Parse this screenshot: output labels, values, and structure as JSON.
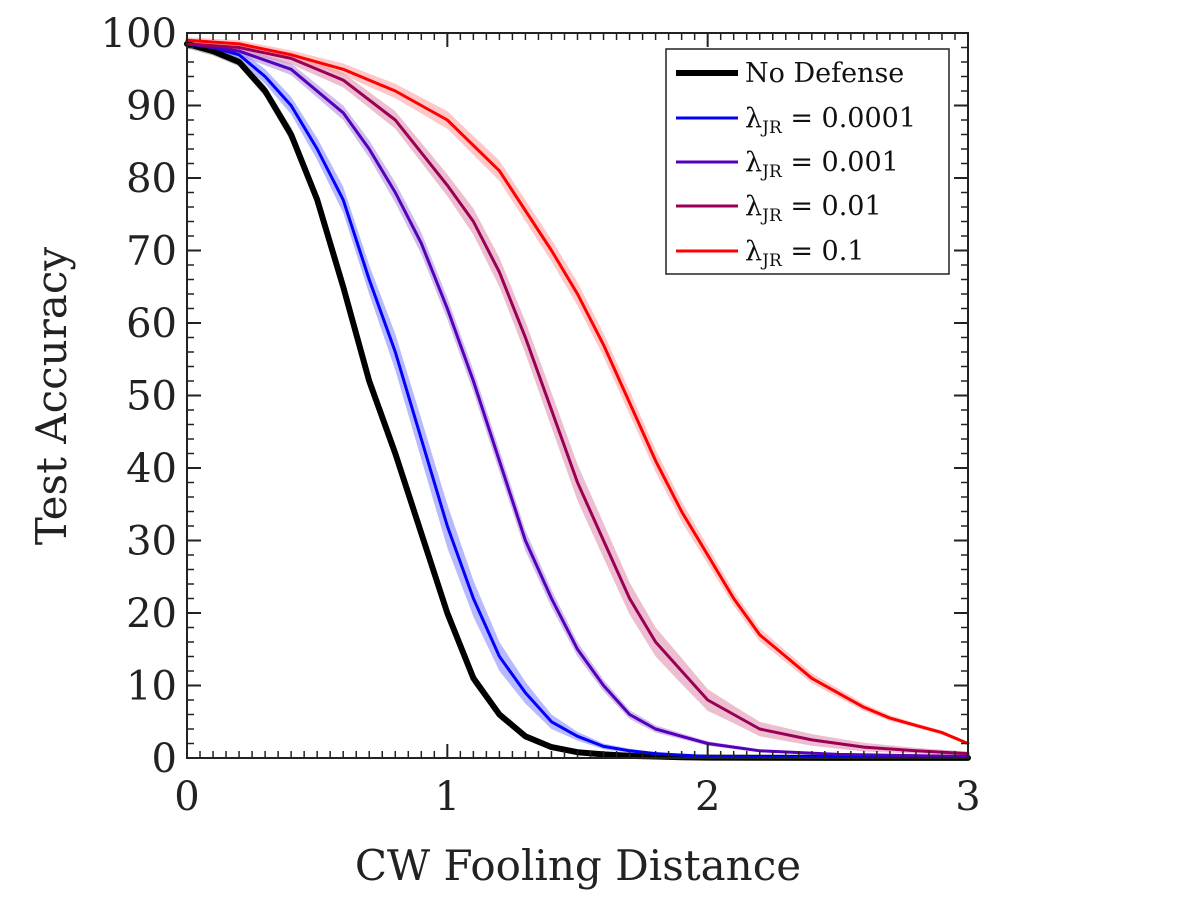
{
  "chart_data": {
    "type": "line",
    "title": "",
    "xlabel": "CW Fooling Distance",
    "ylabel": "Test Accuracy",
    "xlim": [
      0,
      3
    ],
    "ylim": [
      0,
      100
    ],
    "xticks": [
      0,
      1,
      2,
      3
    ],
    "xtick_labels": [
      "0",
      "1",
      "2",
      "3"
    ],
    "yticks": [
      0,
      10,
      20,
      30,
      40,
      50,
      60,
      70,
      80,
      90,
      100
    ],
    "ytick_labels": [
      "0",
      "10",
      "20",
      "30",
      "40",
      "50",
      "60",
      "70",
      "80",
      "90",
      "100"
    ],
    "grid": false,
    "legend_position": "top-right",
    "series": [
      {
        "name": "No Defense",
        "label_main": "No Defense",
        "label_sub": "",
        "label_value": "",
        "color": "#000000",
        "band_color": "#7f7f7f",
        "thick": true,
        "x": [
          0,
          0.1,
          0.2,
          0.3,
          0.4,
          0.5,
          0.6,
          0.7,
          0.8,
          0.9,
          1.0,
          1.1,
          1.2,
          1.3,
          1.4,
          1.5,
          1.6,
          1.7,
          1.8,
          1.9,
          2.0,
          2.5,
          3.0
        ],
        "y": [
          98.5,
          97.5,
          96,
          92,
          86,
          77,
          65,
          52,
          42,
          31,
          20,
          11,
          6,
          3,
          1.5,
          0.8,
          0.5,
          0.3,
          0.2,
          0.1,
          0.05,
          0.02,
          0.01
        ],
        "band": [
          0.6,
          0.6,
          0.6,
          0.8,
          1,
          1,
          1.2,
          1.2,
          1.2,
          1,
          1,
          0.8,
          0.6,
          0.4,
          0.3,
          0.2,
          0.2,
          0.1,
          0.1,
          0.1,
          0.05,
          0.02,
          0.01
        ]
      },
      {
        "name": "λJR = 0.0001",
        "label_main": "λ",
        "label_sub": "JR",
        "label_value": " = 0.0001",
        "color": "#0000ff",
        "band_color": "#8080ff",
        "thick": false,
        "x": [
          0,
          0.1,
          0.2,
          0.3,
          0.4,
          0.5,
          0.6,
          0.7,
          0.8,
          0.9,
          1.0,
          1.1,
          1.2,
          1.3,
          1.4,
          1.5,
          1.6,
          1.7,
          1.8,
          1.9,
          2.0,
          2.5,
          3.0
        ],
        "y": [
          98.5,
          98,
          97,
          94,
          90,
          84,
          77,
          66,
          56,
          44,
          32,
          22,
          14,
          9,
          5,
          3,
          1.6,
          1,
          0.6,
          0.4,
          0.2,
          0.1,
          0.05
        ],
        "band": [
          0.5,
          0.6,
          0.8,
          1,
          1.2,
          1.5,
          1.8,
          2,
          2.5,
          2.8,
          3,
          2.5,
          2,
          1.5,
          1,
          0.6,
          0.4,
          0.3,
          0.2,
          0.1,
          0.1,
          0.05,
          0.02
        ]
      },
      {
        "name": "λJR = 0.001",
        "label_main": "λ",
        "label_sub": "JR",
        "label_value": " = 0.001",
        "color": "#5500bb",
        "band_color": "#aa88dd",
        "thick": false,
        "x": [
          0,
          0.2,
          0.4,
          0.6,
          0.7,
          0.8,
          0.9,
          1.0,
          1.1,
          1.2,
          1.3,
          1.4,
          1.5,
          1.6,
          1.7,
          1.8,
          1.9,
          2.0,
          2.2,
          2.5,
          3.0
        ],
        "y": [
          98.5,
          97.5,
          95,
          89,
          84,
          78,
          71,
          62,
          52,
          41,
          30,
          22,
          15,
          10,
          6,
          4,
          3,
          2,
          1,
          0.5,
          0.2
        ],
        "band": [
          0.5,
          0.6,
          0.8,
          1,
          1.2,
          1.4,
          1.5,
          1.5,
          1.5,
          1.5,
          1.4,
          1.2,
          1,
          0.8,
          0.6,
          0.5,
          0.4,
          0.3,
          0.2,
          0.1,
          0.05
        ]
      },
      {
        "name": "λJR = 0.01",
        "label_main": "λ",
        "label_sub": "JR",
        "label_value": " = 0.01",
        "color": "#990055",
        "band_color": "#dd88aa",
        "thick": false,
        "x": [
          0,
          0.2,
          0.4,
          0.6,
          0.8,
          1.0,
          1.1,
          1.2,
          1.3,
          1.4,
          1.5,
          1.6,
          1.7,
          1.8,
          1.9,
          2.0,
          2.1,
          2.2,
          2.4,
          2.6,
          2.8,
          3.0
        ],
        "y": [
          98.5,
          98,
          96.5,
          93.5,
          88,
          79,
          74,
          67,
          58,
          48,
          38,
          30,
          22,
          16,
          12,
          8,
          6,
          4,
          2.5,
          1.5,
          1,
          0.6
        ],
        "band": [
          0.5,
          0.6,
          0.8,
          1,
          1.2,
          1.5,
          1.8,
          2,
          2.2,
          2.4,
          2.5,
          2.4,
          2.2,
          2,
          1.8,
          1.5,
          1.2,
          1,
          0.8,
          0.6,
          0.4,
          0.3
        ]
      },
      {
        "name": "λJR = 0.1",
        "label_main": "λ",
        "label_sub": "JR",
        "label_value": " = 0.1",
        "color": "#ff0000",
        "band_color": "#ff9999",
        "thick": false,
        "x": [
          0,
          0.2,
          0.4,
          0.6,
          0.8,
          1.0,
          1.2,
          1.4,
          1.5,
          1.6,
          1.7,
          1.8,
          1.9,
          2.0,
          2.1,
          2.2,
          2.3,
          2.4,
          2.5,
          2.6,
          2.7,
          2.8,
          2.9,
          3.0
        ],
        "y": [
          99,
          98.5,
          97,
          95,
          92,
          88,
          81,
          70,
          64,
          57,
          49,
          41,
          34,
          28,
          22,
          17,
          14,
          11,
          9,
          7,
          5.5,
          4.5,
          3.5,
          2
        ],
        "band": [
          0.4,
          0.5,
          0.6,
          0.8,
          1,
          1.2,
          1.4,
          1.5,
          1.6,
          1.6,
          1.6,
          1.5,
          1.4,
          1.2,
          1,
          0.9,
          0.8,
          0.7,
          0.6,
          0.5,
          0.4,
          0.3,
          0.3,
          0.2
        ]
      }
    ]
  }
}
